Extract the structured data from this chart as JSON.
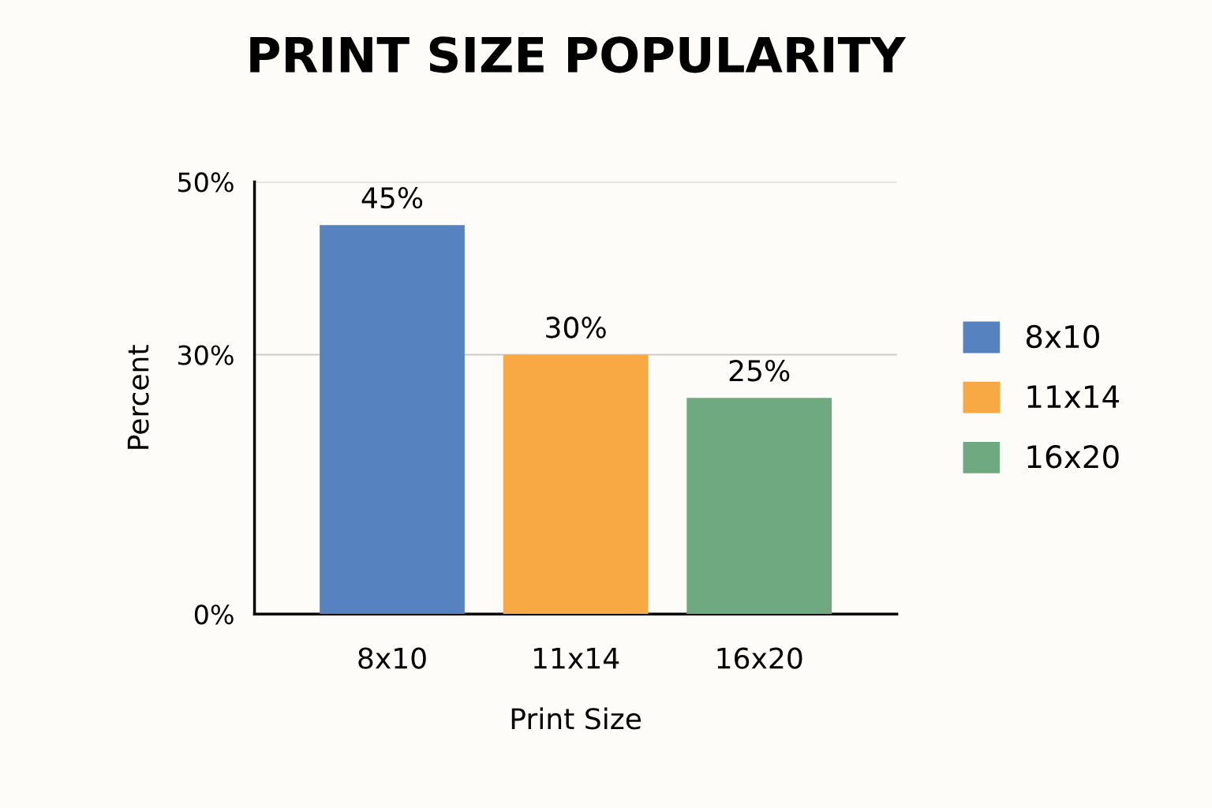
{
  "chart_data": {
    "type": "bar",
    "title": "PRINT SIZE POPULARITY",
    "xlabel": "Print Size",
    "ylabel": "Percent",
    "categories": [
      "8x10",
      "11x14",
      "16x20"
    ],
    "series": [
      {
        "name": "8x10",
        "color": "#5682c0",
        "values": [
          45,
          null,
          null
        ],
        "value_labels": [
          "45%",
          null,
          null
        ]
      },
      {
        "name": "11x14",
        "color": "#f9a943",
        "values": [
          null,
          30,
          null
        ],
        "value_labels": [
          null,
          "30%",
          null
        ]
      },
      {
        "name": "16x20",
        "color": "#6fa97f",
        "values": [
          null,
          null,
          25
        ],
        "value_labels": [
          null,
          null,
          "25%"
        ]
      }
    ],
    "ylim": [
      0,
      50
    ],
    "yticks": [
      {
        "value": 0,
        "label": "0%"
      },
      {
        "value": 30,
        "label": "30%"
      },
      {
        "value": 50,
        "label": "50%"
      }
    ],
    "grid": "y",
    "legend": "right"
  }
}
